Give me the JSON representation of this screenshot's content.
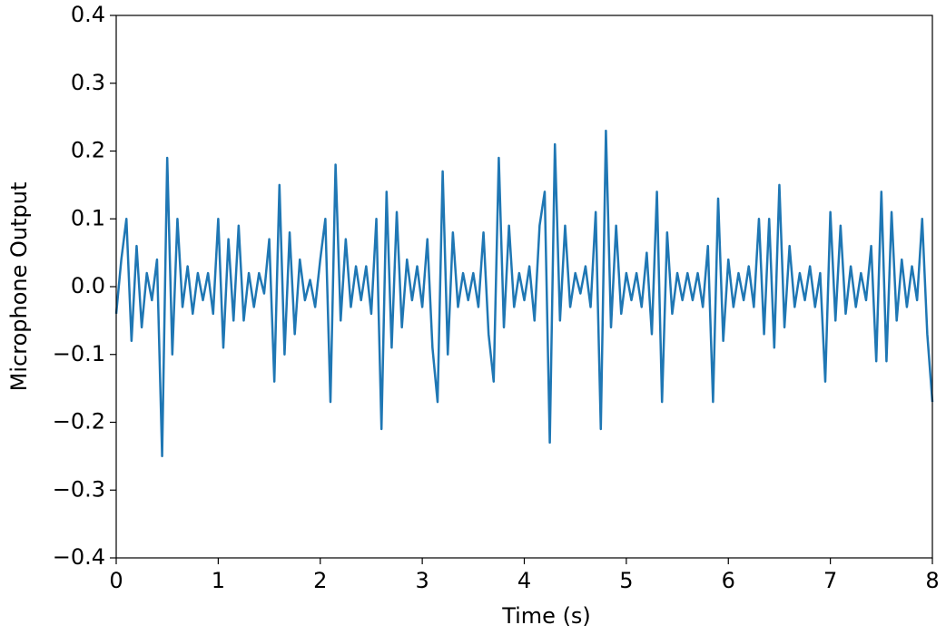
{
  "chart_data": {
    "type": "line",
    "xlabel": "Time (s)",
    "ylabel": "Microphone Output",
    "x": [
      0,
      0.05,
      0.1,
      0.15,
      0.2,
      0.25,
      0.3,
      0.35,
      0.4,
      0.45,
      0.5,
      0.55,
      0.6,
      0.65,
      0.7,
      0.75,
      0.8,
      0.85,
      0.9,
      0.95,
      1,
      1.05,
      1.1,
      1.15,
      1.2,
      1.25,
      1.3,
      1.35,
      1.4,
      1.45,
      1.5,
      1.55,
      1.6,
      1.65,
      1.7,
      1.75,
      1.8,
      1.85,
      1.9,
      1.95,
      2,
      2.05,
      2.1,
      2.15,
      2.2,
      2.25,
      2.3,
      2.35,
      2.4,
      2.45,
      2.5,
      2.55,
      2.6,
      2.65,
      2.7,
      2.75,
      2.8,
      2.85,
      2.9,
      2.95,
      3,
      3.05,
      3.1,
      3.15,
      3.2,
      3.25,
      3.3,
      3.35,
      3.4,
      3.45,
      3.5,
      3.55,
      3.6,
      3.65,
      3.7,
      3.75,
      3.8,
      3.85,
      3.9,
      3.95,
      4,
      4.05,
      4.1,
      4.15,
      4.2,
      4.25,
      4.3,
      4.35,
      4.4,
      4.45,
      4.5,
      4.55,
      4.6,
      4.65,
      4.7,
      4.75,
      4.8,
      4.85,
      4.9,
      4.95,
      5,
      5.05,
      5.1,
      5.15,
      5.2,
      5.25,
      5.3,
      5.35,
      5.4,
      5.45,
      5.5,
      5.55,
      5.6,
      5.65,
      5.7,
      5.75,
      5.8,
      5.85,
      5.9,
      5.95,
      6,
      6.05,
      6.1,
      6.15,
      6.2,
      6.25,
      6.3,
      6.35,
      6.4,
      6.45,
      6.5,
      6.55,
      6.6,
      6.65,
      6.7,
      6.75,
      6.8,
      6.85,
      6.9,
      6.95,
      7,
      7.05,
      7.1,
      7.15,
      7.2,
      7.25,
      7.3,
      7.35,
      7.4,
      7.45,
      7.5,
      7.55,
      7.6,
      7.65,
      7.7,
      7.75,
      7.8,
      7.85,
      7.9,
      7.95,
      8
    ],
    "series": [
      {
        "name": "Microphone Output",
        "color": "#1f77b4",
        "values": [
          -0.04,
          0.04,
          0.1,
          -0.08,
          0.06,
          -0.06,
          0.02,
          -0.02,
          0.04,
          -0.25,
          0.19,
          -0.1,
          0.1,
          -0.03,
          0.03,
          -0.04,
          0.02,
          -0.02,
          0.02,
          -0.04,
          0.1,
          -0.09,
          0.07,
          -0.05,
          0.09,
          -0.05,
          0.02,
          -0.03,
          0.02,
          -0.01,
          0.07,
          -0.14,
          0.15,
          -0.1,
          0.08,
          -0.07,
          0.04,
          -0.02,
          0.01,
          -0.03,
          0.04,
          0.1,
          -0.17,
          0.18,
          -0.05,
          0.07,
          -0.03,
          0.03,
          -0.02,
          0.03,
          -0.04,
          0.1,
          -0.21,
          0.14,
          -0.09,
          0.11,
          -0.06,
          0.04,
          -0.02,
          0.03,
          -0.03,
          0.07,
          -0.09,
          -0.17,
          0.17,
          -0.1,
          0.08,
          -0.03,
          0.02,
          -0.02,
          0.02,
          -0.03,
          0.08,
          -0.07,
          -0.14,
          0.19,
          -0.06,
          0.09,
          -0.03,
          0.02,
          -0.02,
          0.03,
          -0.05,
          0.09,
          0.14,
          -0.23,
          0.21,
          -0.05,
          0.09,
          -0.03,
          0.02,
          -0.01,
          0.03,
          -0.03,
          0.11,
          -0.21,
          0.23,
          -0.06,
          0.09,
          -0.04,
          0.02,
          -0.02,
          0.02,
          -0.03,
          0.05,
          -0.07,
          0.14,
          -0.17,
          0.08,
          -0.04,
          0.02,
          -0.02,
          0.02,
          -0.02,
          0.02,
          -0.03,
          0.06,
          -0.17,
          0.13,
          -0.08,
          0.04,
          -0.03,
          0.02,
          -0.02,
          0.03,
          -0.03,
          0.1,
          -0.07,
          0.1,
          -0.09,
          0.15,
          -0.06,
          0.06,
          -0.03,
          0.02,
          -0.02,
          0.03,
          -0.03,
          0.02,
          -0.14,
          0.11,
          -0.05,
          0.09,
          -0.04,
          0.03,
          -0.03,
          0.02,
          -0.02,
          0.06,
          -0.11,
          0.14,
          -0.11,
          0.11,
          -0.05,
          0.04,
          -0.03,
          0.03,
          -0.02,
          0.1,
          -0.07,
          -0.17
        ]
      }
    ],
    "xlim": [
      0,
      8
    ],
    "xticks": [
      0,
      1,
      2,
      3,
      4,
      5,
      6,
      7,
      8
    ],
    "ylim": [
      -0.4,
      0.4
    ],
    "yticks": [
      {
        "value": -0.4,
        "label": "−0.4"
      },
      {
        "value": -0.3,
        "label": "−0.3"
      },
      {
        "value": -0.2,
        "label": "−0.2"
      },
      {
        "value": -0.1,
        "label": "−0.1"
      },
      {
        "value": 0,
        "label": "0.0"
      },
      0.1,
      0.2,
      0.3,
      0.4
    ],
    "grid": false
  }
}
